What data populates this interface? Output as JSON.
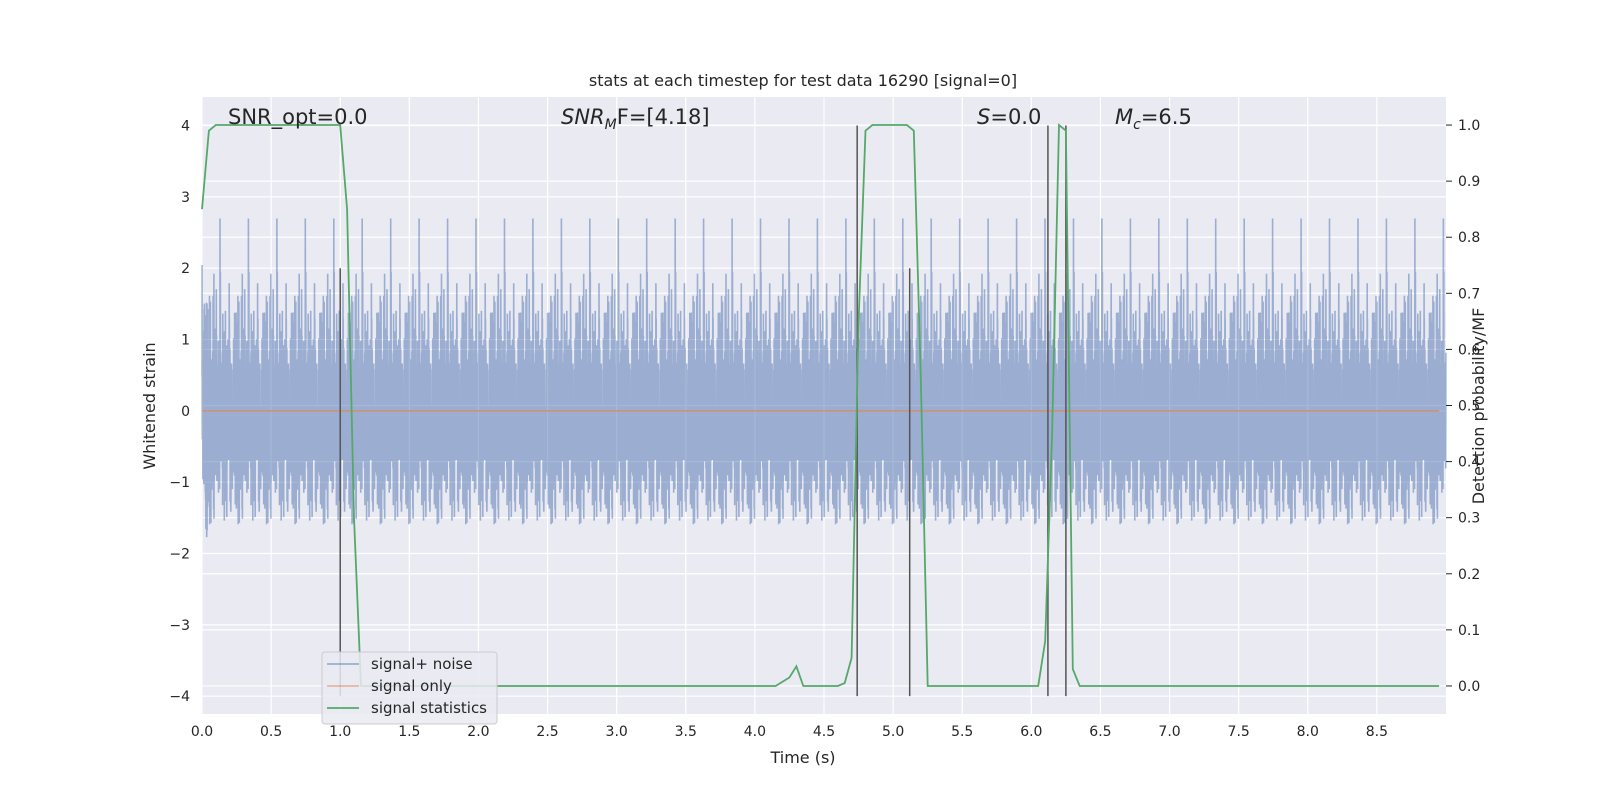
{
  "chart_data": {
    "type": "line",
    "title": "stats at each timestep for test data 16290 [signal=0]",
    "xlabel": "Time (s)",
    "ylabel_left": "Whitened strain",
    "ylabel_right": "Detection probability/MF",
    "xlim": [
      0.0,
      9.0
    ],
    "ylim_left": [
      -4.25,
      4.4
    ],
    "ylim_right": [
      -0.05,
      1.05
    ],
    "xticks": [
      0.0,
      0.5,
      1.0,
      1.5,
      2.0,
      2.5,
      3.0,
      3.5,
      4.0,
      4.5,
      5.0,
      5.5,
      6.0,
      6.5,
      7.0,
      7.5,
      8.0,
      8.5
    ],
    "xtick_labels": [
      "0.0",
      "0.5",
      "1.0",
      "1.5",
      "2.0",
      "2.5",
      "3.0",
      "3.5",
      "4.0",
      "4.5",
      "5.0",
      "5.5",
      "6.0",
      "6.5",
      "7.0",
      "7.5",
      "8.0",
      "8.5"
    ],
    "yticks_left": [
      -4,
      -3,
      -2,
      -1,
      0,
      1,
      2,
      3,
      4
    ],
    "ytick_labels_left": [
      "−4",
      "−3",
      "−2",
      "−1",
      "0",
      "1",
      "2",
      "3",
      "4"
    ],
    "yticks_right": [
      0.0,
      0.1,
      0.2,
      0.3,
      0.4,
      0.5,
      0.6,
      0.7,
      0.8,
      0.9,
      1.0
    ],
    "ytick_labels_right": [
      "0.0",
      "0.1",
      "0.2",
      "0.3",
      "0.4",
      "0.5",
      "0.6",
      "0.7",
      "0.8",
      "0.9",
      "1.0"
    ],
    "grid": true,
    "annotations": {
      "snr_opt": "SNR_opt=0.0",
      "snr_mf_label": "SNR",
      "snr_mf_sub": "M",
      "snr_mf_value": "F=[4.18]",
      "s_label": "S",
      "s_value": "=0.0",
      "mc_label": "M",
      "mc_sub": "c",
      "mc_value": "=6.5"
    },
    "legend": {
      "position": "lower-left",
      "entries": [
        "signal+ noise",
        "signal only",
        "signal statistics"
      ]
    },
    "colors": {
      "noise": "#4c72b0",
      "signal_only": "#dd8452",
      "statistics": "#55a868",
      "vlines": "#555555",
      "plot_bg": "#eaeaf2",
      "grid": "#ffffff"
    },
    "noise": {
      "sample_rate_hz": 1200,
      "std_left_units": 0.85
    },
    "signal_only": {
      "value": 0.0
    },
    "statistics": {
      "axis": "right",
      "x": [
        0.0,
        0.05,
        0.1,
        0.15,
        0.95,
        1.0,
        1.05,
        1.1,
        1.15,
        1.2,
        4.15,
        4.25,
        4.3,
        4.35,
        4.6,
        4.65,
        4.7,
        4.75,
        4.8,
        4.85,
        5.1,
        5.15,
        5.2,
        5.25,
        6.05,
        6.1,
        6.15,
        6.2,
        6.25,
        6.3,
        6.35,
        8.95
      ],
      "y": [
        0.85,
        0.99,
        1.0,
        1.0,
        1.0,
        1.0,
        0.85,
        0.3,
        0.0,
        0.0,
        0.0,
        0.015,
        0.035,
        0.0,
        0.0,
        0.005,
        0.05,
        0.65,
        0.99,
        1.0,
        1.0,
        0.99,
        0.55,
        0.0,
        0.0,
        0.08,
        0.45,
        1.0,
        0.99,
        0.03,
        0.0,
        0.0
      ]
    },
    "vlines": [
      {
        "x": 1.0,
        "y_bottom": -4.0,
        "y_top": 2.0
      },
      {
        "x": 4.74,
        "y_bottom": -4.0,
        "y_top": 4.0
      },
      {
        "x": 5.12,
        "y_bottom": -4.0,
        "y_top": 2.0
      },
      {
        "x": 6.12,
        "y_bottom": -4.0,
        "y_top": 4.0
      },
      {
        "x": 6.25,
        "y_bottom": -4.0,
        "y_top": 4.0
      }
    ]
  }
}
